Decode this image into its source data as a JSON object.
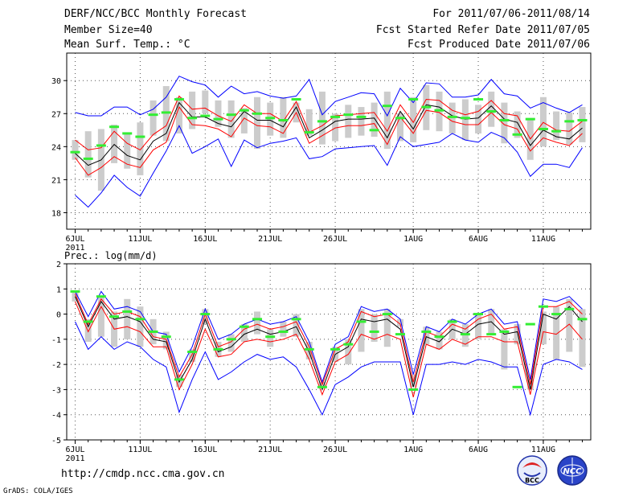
{
  "header": {
    "title": "DERF/NCC/BCC Monthly Forecast",
    "member_size": "Member Size=40",
    "variable": "Mean Surf. Temp.: °C",
    "forecast_period": "For 2011/07/06-2011/08/14",
    "started": "Fcst Started Refer Date 2011/07/05",
    "produced": "Fcst Produced Date 2011/07/06"
  },
  "footer": {
    "url": "http://cmdp.ncc.cma.gov.cn",
    "credit": "GrADS: COLA/IGES",
    "logo_bcc": "BCC",
    "logo_ncc": "NCC"
  },
  "colors": {
    "ensemble_box": "#cccccc",
    "mean_line": "#000000",
    "quantile_lines": "#ff0000",
    "envelope_lines": "#0000ff",
    "median_marker": "#33ee33",
    "grid": "#555555"
  },
  "chart_data": [
    {
      "type": "line",
      "title": "Mean Surf. Temp.: °C",
      "ylim": [
        16.5,
        32.5
      ],
      "yticks": [
        18,
        21,
        24,
        27,
        30
      ],
      "x": [
        1,
        2,
        3,
        4,
        5,
        6,
        7,
        8,
        9,
        10,
        11,
        12,
        13,
        14,
        15,
        16,
        17,
        18,
        19,
        20,
        21,
        22,
        23,
        24,
        25,
        26,
        27,
        28,
        29,
        30,
        31,
        32,
        33,
        34,
        35,
        36,
        37,
        38,
        39,
        40
      ],
      "xtick_labels": [
        {
          "day": 1,
          "label": "6JUL",
          "sub": "2011"
        },
        {
          "day": 6,
          "label": "11JUL"
        },
        {
          "day": 11,
          "label": "16JUL"
        },
        {
          "day": 16,
          "label": "21JUL"
        },
        {
          "day": 21,
          "label": "26JUL"
        },
        {
          "day": 27,
          "label": "1AUG"
        },
        {
          "day": 32,
          "label": "6AUG"
        },
        {
          "day": 37,
          "label": "11AUG"
        }
      ],
      "box_low": [
        22.8,
        21.2,
        20.0,
        22.5,
        22.0,
        21.4,
        25.0,
        24.5,
        25.2,
        25.6,
        27.0,
        25.8,
        24.8,
        25.2,
        23.8,
        25.0,
        24.8,
        26.2,
        25.0,
        24.2,
        24.5,
        24.8,
        25.0,
        24.9,
        23.8,
        24.5,
        24.4,
        25.5,
        25.4,
        25.2,
        24.6,
        25.2,
        25.8,
        24.3,
        24.8,
        22.8,
        24.0,
        24.6,
        24.2,
        24.4
      ],
      "box_high": [
        24.6,
        25.4,
        25.6,
        26.0,
        25.2,
        26.2,
        28.2,
        29.5,
        28.5,
        29.0,
        29.1,
        28.2,
        28.2,
        27.5,
        28.5,
        28.0,
        28.5,
        28.0,
        27.4,
        29.0,
        27.0,
        27.8,
        27.6,
        28.0,
        29.0,
        27.0,
        28.5,
        29.6,
        29.0,
        28.0,
        28.3,
        27.8,
        29.0,
        28.0,
        27.2,
        26.6,
        28.5,
        27.2,
        27.1,
        27.6
      ],
      "series": [
        {
          "name": "ensemble max",
          "values": [
            27.1,
            26.8,
            26.8,
            27.6,
            27.6,
            26.9,
            27.4,
            28.5,
            30.4,
            29.9,
            29.6,
            28.5,
            29.5,
            28.8,
            29.0,
            28.6,
            28.4,
            28.6,
            30.1,
            26.9,
            28.1,
            28.5,
            28.9,
            28.8,
            26.8,
            29.3,
            28.0,
            29.8,
            29.7,
            28.5,
            28.5,
            28.7,
            30.1,
            28.8,
            28.6,
            27.5,
            28.0,
            27.5,
            27.1,
            27.8
          ]
        },
        {
          "name": "upper quantile",
          "values": [
            24.6,
            23.7,
            23.9,
            25.4,
            24.3,
            23.7,
            25.1,
            25.9,
            28.6,
            27.4,
            27.5,
            26.8,
            26.3,
            27.8,
            27.0,
            27.0,
            26.3,
            28.1,
            25.3,
            25.9,
            26.8,
            26.9,
            27.0,
            27.1,
            25.4,
            27.8,
            26.2,
            28.3,
            28.2,
            27.3,
            26.9,
            27.2,
            28.2,
            27.0,
            26.8,
            24.7,
            26.2,
            25.5,
            25.4,
            26.3
          ]
        },
        {
          "name": "ensemble mean",
          "values": [
            23.4,
            22.3,
            22.8,
            24.2,
            23.2,
            22.8,
            24.5,
            25.2,
            28.0,
            26.7,
            26.7,
            26.1,
            25.8,
            27.2,
            26.4,
            26.4,
            25.8,
            27.6,
            24.8,
            25.5,
            26.3,
            26.5,
            26.5,
            26.6,
            24.8,
            27.2,
            25.6,
            27.8,
            27.6,
            26.8,
            26.5,
            26.6,
            27.7,
            26.5,
            26.2,
            24.1,
            25.5,
            24.9,
            24.7,
            25.7
          ]
        },
        {
          "name": "lower quantile",
          "values": [
            23.0,
            21.4,
            22.1,
            23.1,
            22.4,
            22.1,
            23.7,
            24.4,
            27.6,
            26.0,
            25.9,
            25.6,
            24.9,
            26.6,
            25.9,
            25.8,
            25.2,
            27.1,
            24.3,
            25.0,
            25.7,
            25.9,
            25.9,
            26.1,
            24.2,
            26.7,
            25.2,
            27.3,
            27.1,
            26.3,
            26.0,
            26.0,
            27.1,
            26.0,
            25.6,
            23.6,
            24.8,
            24.4,
            24.1,
            25.2
          ]
        },
        {
          "name": "ensemble min",
          "values": [
            19.6,
            18.5,
            19.8,
            21.4,
            20.3,
            19.5,
            21.6,
            23.6,
            25.9,
            23.4,
            24.0,
            24.7,
            22.2,
            24.6,
            23.9,
            24.3,
            24.5,
            24.8,
            22.9,
            23.1,
            23.8,
            23.9,
            24.0,
            24.1,
            22.3,
            24.9,
            24.0,
            24.2,
            24.4,
            25.2,
            24.6,
            24.4,
            25.3,
            24.8,
            23.5,
            21.3,
            22.4,
            22.4,
            22.1,
            23.9
          ]
        }
      ],
      "median_marks": [
        23.5,
        22.9,
        24.1,
        25.8,
        25.2,
        24.9,
        26.9,
        27.1,
        28.3,
        26.6,
        26.8,
        26.5,
        26.9,
        27.3,
        27.0,
        26.6,
        26.4,
        28.3,
        25.3,
        26.3,
        26.7,
        26.9,
        26.7,
        25.5,
        27.7,
        26.6,
        28.3,
        27.6,
        27.3,
        26.7,
        26.6,
        28.3,
        27.2,
        26.4,
        25.1,
        26.5,
        25.6,
        25.4,
        26.3,
        26.4
      ]
    },
    {
      "type": "line",
      "title": "Prec.: log(mm/d)",
      "ylim": [
        -5,
        2
      ],
      "yticks": [
        -5,
        -4,
        -3,
        -2,
        -1,
        0,
        1,
        2
      ],
      "x": [
        1,
        2,
        3,
        4,
        5,
        6,
        7,
        8,
        9,
        10,
        11,
        12,
        13,
        14,
        15,
        16,
        17,
        18,
        19,
        20,
        21,
        22,
        23,
        24,
        25,
        26,
        27,
        28,
        29,
        30,
        31,
        32,
        33,
        34,
        35,
        36,
        37,
        38,
        39,
        40
      ],
      "xtick_labels": [
        {
          "day": 1,
          "label": "6JUL",
          "sub": "2011"
        },
        {
          "day": 6,
          "label": "11JUL"
        },
        {
          "day": 11,
          "label": "16JUL"
        },
        {
          "day": 16,
          "label": "21JUL"
        },
        {
          "day": 21,
          "label": "26JUL"
        },
        {
          "day": 27,
          "label": "1AUG"
        },
        {
          "day": 32,
          "label": "6AUG"
        },
        {
          "day": 37,
          "label": "11AUG"
        }
      ],
      "box_low": [
        0.5,
        -1.1,
        -0.9,
        -1.3,
        -1.0,
        -1.3,
        -1.2,
        -1.4,
        -2.9,
        -1.9,
        -0.4,
        -1.7,
        -1.5,
        -1.1,
        -0.8,
        -1.3,
        -0.9,
        -0.9,
        -1.8,
        -2.9,
        -1.9,
        -2.0,
        -1.5,
        -1.1,
        -1.3,
        -0.5,
        -2.9,
        -1.2,
        -1.4,
        -1.0,
        -1.3,
        -1.0,
        -0.8,
        -2.2,
        -1.2,
        -3.0,
        -1.2,
        -1.8,
        -1.5,
        -2.1
      ],
      "box_high": [
        0.9,
        -0.2,
        0.7,
        0.1,
        0.6,
        0.3,
        -0.2,
        -0.7,
        -2.4,
        -1.4,
        0.2,
        -1.1,
        -0.8,
        -0.4,
        0.1,
        -0.6,
        -0.3,
        0.0,
        -1.1,
        -2.7,
        -1.3,
        -1.0,
        0.2,
        0.0,
        0.2,
        -0.2,
        -2.4,
        -0.5,
        -0.7,
        -0.2,
        -0.4,
        0.0,
        0.2,
        -0.6,
        -0.4,
        -2.6,
        0.1,
        0.3,
        0.6,
        0.2
      ],
      "series": [
        {
          "name": "ensemble max",
          "values": [
            0.9,
            -0.1,
            0.9,
            0.2,
            0.3,
            0.1,
            -0.7,
            -0.8,
            -2.3,
            -1.3,
            0.2,
            -1.0,
            -0.8,
            -0.4,
            -0.2,
            -0.4,
            -0.3,
            -0.1,
            -1.1,
            -2.7,
            -1.2,
            -0.9,
            0.3,
            0.1,
            0.2,
            -0.2,
            -2.4,
            -0.5,
            -0.7,
            -0.2,
            -0.4,
            0.0,
            0.2,
            -0.4,
            -0.3,
            -2.6,
            0.6,
            0.5,
            0.7,
            0.2
          ]
        },
        {
          "name": "upper quantile",
          "values": [
            0.8,
            -0.4,
            0.6,
            0.0,
            0.1,
            -0.1,
            -0.9,
            -1.0,
            -2.5,
            -1.6,
            0.0,
            -1.3,
            -1.1,
            -0.6,
            -0.4,
            -0.6,
            -0.5,
            -0.3,
            -1.3,
            -2.8,
            -1.4,
            -1.1,
            0.1,
            -0.1,
            0.0,
            -0.4,
            -2.7,
            -0.7,
            -0.9,
            -0.4,
            -0.6,
            -0.2,
            0.0,
            -0.6,
            -0.5,
            -2.8,
            0.3,
            0.3,
            0.5,
            0.0
          ]
        },
        {
          "name": "ensemble mean",
          "values": [
            0.7,
            -0.5,
            0.5,
            -0.2,
            -0.1,
            -0.3,
            -1.0,
            -1.1,
            -2.7,
            -1.8,
            -0.2,
            -1.5,
            -1.3,
            -0.8,
            -0.6,
            -0.8,
            -0.7,
            -0.5,
            -1.5,
            -3.0,
            -1.6,
            -1.3,
            -0.2,
            -0.3,
            -0.2,
            -0.6,
            -2.9,
            -0.9,
            -1.1,
            -0.6,
            -0.8,
            -0.4,
            -0.3,
            -0.8,
            -0.7,
            -3.0,
            0.0,
            -0.2,
            0.3,
            -0.3
          ]
        },
        {
          "name": "lower quantile",
          "values": [
            0.5,
            -0.7,
            0.3,
            -0.6,
            -0.5,
            -0.7,
            -1.3,
            -1.3,
            -3.0,
            -2.0,
            -0.6,
            -1.7,
            -1.6,
            -1.1,
            -1.0,
            -1.1,
            -1.0,
            -0.8,
            -1.8,
            -3.2,
            -1.9,
            -1.6,
            -0.8,
            -1.0,
            -0.8,
            -1.0,
            -3.3,
            -1.2,
            -1.4,
            -1.0,
            -1.2,
            -0.9,
            -0.9,
            -1.1,
            -1.1,
            -3.2,
            -0.7,
            -0.8,
            -0.4,
            -1.0
          ]
        },
        {
          "name": "ensemble min",
          "values": [
            -0.3,
            -1.4,
            -0.9,
            -1.4,
            -1.1,
            -1.3,
            -1.8,
            -2.1,
            -3.9,
            -2.6,
            -1.5,
            -2.6,
            -2.3,
            -1.9,
            -1.6,
            -1.8,
            -1.7,
            -2.1,
            -3.0,
            -4.0,
            -2.8,
            -2.5,
            -2.1,
            -1.9,
            -1.9,
            -1.9,
            -4.0,
            -2.0,
            -2.0,
            -1.9,
            -2.0,
            -1.8,
            -1.9,
            -2.1,
            -2.1,
            -4.0,
            -2.0,
            -1.8,
            -1.9,
            -2.2
          ]
        }
      ],
      "median_marks": [
        0.9,
        -0.3,
        0.7,
        -0.1,
        0.1,
        -0.2,
        -0.7,
        -0.9,
        -2.6,
        -1.5,
        0.0,
        -1.4,
        -1.0,
        -0.5,
        -0.2,
        -0.9,
        -0.7,
        -0.2,
        -1.4,
        -2.9,
        -1.4,
        -1.2,
        -0.3,
        -0.7,
        0.0,
        -0.8,
        -3.0,
        -0.7,
        -0.9,
        -0.3,
        -0.8,
        0.0,
        -0.8,
        -0.7,
        -2.9,
        -0.4,
        0.3,
        0.0,
        0.2,
        -0.2
      ]
    }
  ]
}
